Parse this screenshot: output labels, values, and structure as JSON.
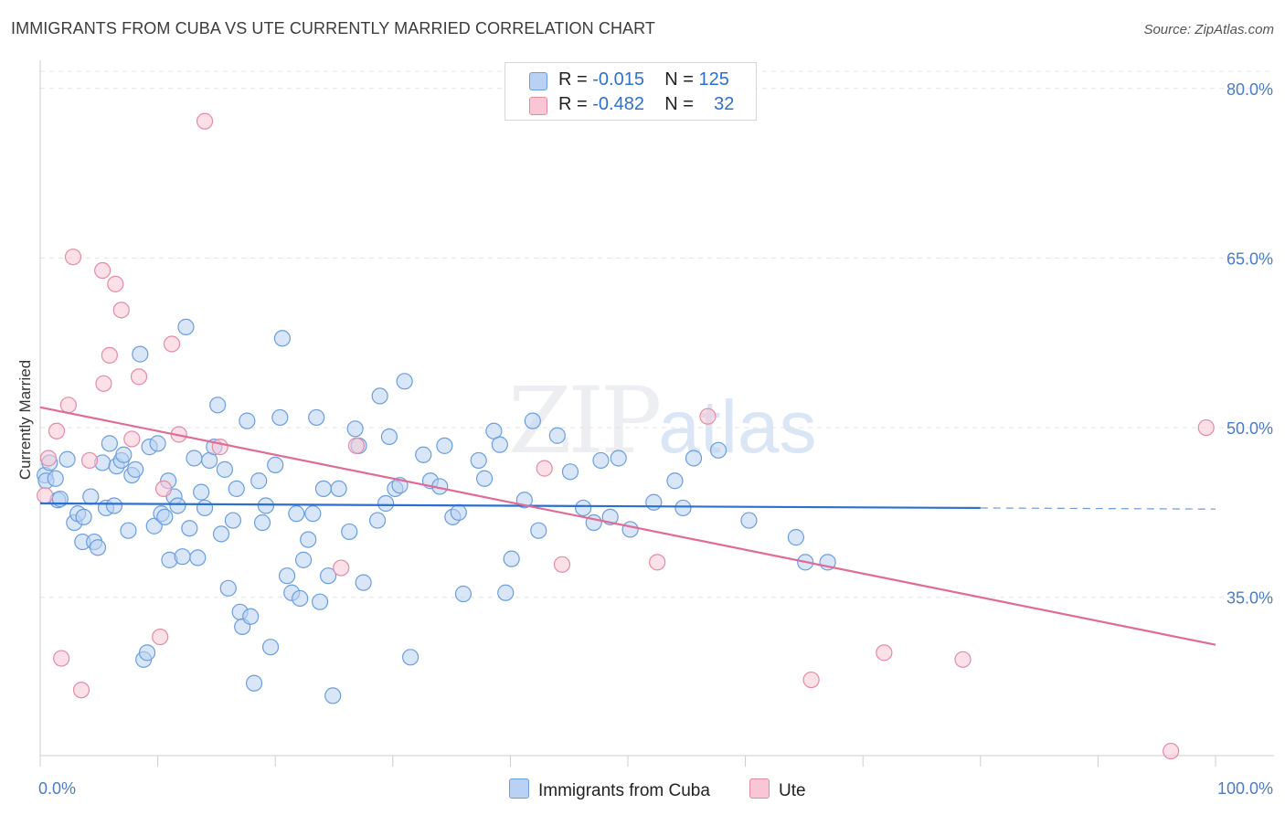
{
  "title": "IMMIGRANTS FROM CUBA VS UTE CURRENTLY MARRIED CORRELATION CHART",
  "source": "Source: ZipAtlas.com",
  "watermark": {
    "zip": "ZIP",
    "atlas": "atlas"
  },
  "legend": {
    "series": [
      {
        "r_label": "R = ",
        "r_value": "-0.015",
        "n_label": "N = ",
        "n_value": "125",
        "color": "#a7c6f2"
      },
      {
        "r_label": "R = ",
        "r_value": "-0.482",
        "n_label": "N = ",
        "n_value": "32",
        "color": "#f6b8cb"
      }
    ]
  },
  "chart_data": {
    "type": "scatter",
    "title": "IMMIGRANTS FROM CUBA VS UTE CURRENTLY MARRIED CORRELATION CHART",
    "xlabel": "",
    "ylabel": "Currently Married",
    "xlim": [
      0,
      100
    ],
    "ylim": [
      21,
      82
    ],
    "x_tick_labels": [
      "0.0%",
      "100.0%"
    ],
    "y_ticks": [
      35,
      50,
      65,
      80
    ],
    "y_tick_labels": [
      "35.0%",
      "50.0%",
      "65.0%",
      "80.0%"
    ],
    "grid": true,
    "legend_position": "top-center",
    "series": [
      {
        "name": "Immigrants from Cuba",
        "color": "#6a9ee0",
        "fill": "#b9d1f3",
        "trend": {
          "x0": 0,
          "y0": 43.3,
          "x1": 80,
          "y1": 42.9,
          "dash_to": 100,
          "dash_y": 42.8,
          "color": "#2b6fd0"
        },
        "points": [
          [
            0.4,
            45.8
          ],
          [
            0.5,
            45.3
          ],
          [
            0.8,
            46.9
          ],
          [
            1.3,
            45.5
          ],
          [
            1.5,
            43.6
          ],
          [
            1.7,
            43.7
          ],
          [
            2.3,
            47.2
          ],
          [
            2.9,
            41.6
          ],
          [
            3.2,
            42.4
          ],
          [
            3.6,
            39.9
          ],
          [
            3.7,
            42.1
          ],
          [
            4.3,
            43.9
          ],
          [
            4.6,
            39.9
          ],
          [
            4.9,
            39.4
          ],
          [
            5.3,
            46.9
          ],
          [
            5.6,
            42.9
          ],
          [
            5.9,
            48.6
          ],
          [
            6.3,
            43.1
          ],
          [
            6.5,
            46.6
          ],
          [
            6.9,
            47.1
          ],
          [
            7.1,
            47.6
          ],
          [
            7.5,
            40.9
          ],
          [
            7.8,
            45.8
          ],
          [
            8.1,
            46.3
          ],
          [
            8.5,
            56.5
          ],
          [
            8.8,
            29.5
          ],
          [
            9.1,
            30.1
          ],
          [
            9.3,
            48.3
          ],
          [
            9.7,
            41.3
          ],
          [
            10.0,
            48.6
          ],
          [
            10.3,
            42.4
          ],
          [
            10.6,
            42.1
          ],
          [
            10.9,
            45.3
          ],
          [
            11.0,
            38.3
          ],
          [
            11.4,
            43.9
          ],
          [
            11.7,
            43.1
          ],
          [
            12.1,
            38.6
          ],
          [
            12.4,
            58.9
          ],
          [
            12.7,
            41.1
          ],
          [
            13.1,
            47.3
          ],
          [
            13.4,
            38.5
          ],
          [
            13.7,
            44.3
          ],
          [
            14.0,
            42.9
          ],
          [
            14.4,
            47.1
          ],
          [
            14.8,
            48.3
          ],
          [
            15.1,
            52.0
          ],
          [
            15.4,
            40.6
          ],
          [
            15.7,
            46.3
          ],
          [
            16.0,
            35.8
          ],
          [
            16.4,
            41.8
          ],
          [
            16.7,
            44.6
          ],
          [
            17.0,
            33.7
          ],
          [
            17.2,
            32.4
          ],
          [
            17.6,
            50.6
          ],
          [
            17.9,
            33.3
          ],
          [
            18.2,
            27.4
          ],
          [
            18.6,
            45.3
          ],
          [
            18.9,
            41.6
          ],
          [
            19.2,
            43.1
          ],
          [
            19.6,
            30.6
          ],
          [
            20.0,
            46.7
          ],
          [
            20.4,
            50.9
          ],
          [
            20.6,
            57.9
          ],
          [
            21.0,
            36.9
          ],
          [
            21.4,
            35.4
          ],
          [
            21.8,
            42.4
          ],
          [
            22.1,
            34.9
          ],
          [
            22.4,
            38.3
          ],
          [
            22.8,
            40.1
          ],
          [
            23.2,
            42.4
          ],
          [
            23.5,
            50.9
          ],
          [
            23.8,
            34.6
          ],
          [
            24.1,
            44.6
          ],
          [
            24.5,
            36.9
          ],
          [
            24.9,
            26.3
          ],
          [
            25.4,
            44.6
          ],
          [
            26.3,
            40.8
          ],
          [
            26.8,
            49.9
          ],
          [
            27.1,
            48.4
          ],
          [
            27.5,
            36.3
          ],
          [
            28.7,
            41.8
          ],
          [
            28.9,
            52.8
          ],
          [
            29.4,
            43.3
          ],
          [
            29.7,
            49.2
          ],
          [
            30.2,
            44.6
          ],
          [
            30.6,
            44.9
          ],
          [
            31.0,
            54.1
          ],
          [
            31.5,
            29.7
          ],
          [
            32.6,
            47.6
          ],
          [
            33.2,
            45.3
          ],
          [
            34.0,
            44.8
          ],
          [
            34.4,
            48.4
          ],
          [
            35.1,
            42.1
          ],
          [
            35.6,
            42.5
          ],
          [
            36.0,
            35.3
          ],
          [
            37.3,
            47.1
          ],
          [
            37.8,
            45.5
          ],
          [
            38.6,
            49.7
          ],
          [
            39.1,
            48.5
          ],
          [
            39.6,
            35.4
          ],
          [
            40.1,
            38.4
          ],
          [
            41.2,
            43.6
          ],
          [
            41.9,
            50.6
          ],
          [
            42.4,
            40.9
          ],
          [
            44.0,
            49.3
          ],
          [
            45.1,
            46.1
          ],
          [
            46.2,
            42.9
          ],
          [
            47.1,
            41.6
          ],
          [
            47.7,
            47.1
          ],
          [
            48.5,
            42.1
          ],
          [
            49.2,
            47.3
          ],
          [
            50.2,
            41.0
          ],
          [
            52.2,
            43.4
          ],
          [
            54.0,
            45.3
          ],
          [
            54.7,
            42.9
          ],
          [
            55.6,
            47.3
          ],
          [
            57.7,
            48.0
          ],
          [
            60.3,
            41.8
          ],
          [
            64.3,
            40.3
          ],
          [
            65.1,
            38.1
          ],
          [
            67.0,
            38.1
          ]
        ]
      },
      {
        "name": "Ute",
        "color": "#e58aa5",
        "fill": "#f8c6d5",
        "trend": {
          "x0": 0,
          "y0": 51.8,
          "x1": 100,
          "y1": 30.8,
          "color": "#e06b94"
        },
        "points": [
          [
            0.4,
            44.0
          ],
          [
            0.7,
            47.3
          ],
          [
            1.4,
            49.7
          ],
          [
            1.8,
            29.6
          ],
          [
            2.4,
            52.0
          ],
          [
            2.8,
            65.1
          ],
          [
            3.5,
            26.8
          ],
          [
            4.2,
            47.1
          ],
          [
            5.3,
            63.9
          ],
          [
            5.4,
            53.9
          ],
          [
            5.9,
            56.4
          ],
          [
            6.4,
            62.7
          ],
          [
            6.9,
            60.4
          ],
          [
            7.8,
            49.0
          ],
          [
            8.4,
            54.5
          ],
          [
            10.2,
            31.5
          ],
          [
            10.5,
            44.6
          ],
          [
            11.2,
            57.4
          ],
          [
            11.8,
            49.4
          ],
          [
            14.0,
            77.1
          ],
          [
            15.3,
            48.3
          ],
          [
            25.6,
            37.6
          ],
          [
            26.9,
            48.4
          ],
          [
            42.9,
            46.4
          ],
          [
            44.4,
            37.9
          ],
          [
            52.5,
            38.1
          ],
          [
            56.8,
            51.0
          ],
          [
            65.6,
            27.7
          ],
          [
            71.8,
            30.1
          ],
          [
            78.5,
            29.5
          ],
          [
            96.2,
            21.4
          ],
          [
            99.2,
            50.0
          ]
        ]
      }
    ]
  },
  "bottom_legend": [
    {
      "label": "Immigrants from Cuba",
      "color": "#b9d1f3",
      "border": "#6a9ee0"
    },
    {
      "label": "Ute",
      "color": "#f8c6d5",
      "border": "#e58aa5"
    }
  ]
}
